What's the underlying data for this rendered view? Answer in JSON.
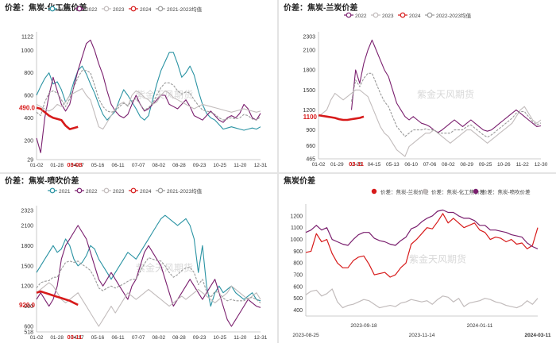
{
  "chart_data": [
    {
      "panel": "tl",
      "type": "line",
      "title": "价差：焦炭-化工焦价差",
      "legend": [
        "2021",
        "2022",
        "2023",
        "2024",
        "2021-2023均值"
      ],
      "legend_placement": "top",
      "xticks": [
        "01-02",
        "01-28",
        "04-17",
        "05-16",
        "06-11",
        "07-07",
        "08-02",
        "08-28",
        "09-23",
        "10-25",
        "11-20",
        "12-31"
      ],
      "yticks": [
        1122,
        1000,
        800,
        600,
        400,
        200,
        29
      ],
      "ylim": [
        29,
        1122
      ],
      "highlight": {
        "date": "03-08",
        "value": "490.0"
      },
      "watermark": "紫金天风期货",
      "series": [
        {
          "name": "2021",
          "color": "#2a93a3",
          "values": [
            600,
            680,
            750,
            800,
            700,
            720,
            650,
            540,
            600,
            720,
            820,
            860,
            790,
            700,
            620,
            520,
            430,
            380,
            420,
            460,
            560,
            650,
            600,
            540,
            480,
            410,
            380,
            420,
            560,
            700,
            820,
            900,
            980,
            980,
            880,
            760,
            800,
            860,
            780,
            640,
            520,
            440,
            400,
            380,
            340,
            300,
            310,
            320,
            310,
            300,
            290,
            300,
            310,
            300,
            320
          ]
        },
        {
          "name": "2022",
          "color": "#7a1f6e",
          "values": [
            220,
            90,
            400,
            600,
            760,
            640,
            520,
            460,
            520,
            680,
            820,
            940,
            1060,
            1090,
            1000,
            880,
            780,
            640,
            520,
            460,
            420,
            400,
            430,
            520,
            600,
            520,
            460,
            480,
            520,
            560,
            600,
            600,
            520,
            500,
            480,
            520,
            560,
            500,
            420,
            400,
            380,
            420,
            460,
            420,
            380,
            360,
            400,
            420,
            400,
            440,
            520,
            480,
            400,
            380,
            440
          ]
        },
        {
          "name": "2023",
          "color": "#c2bcbc",
          "values": [
            520,
            500,
            480,
            460,
            480,
            520,
            500,
            540,
            600,
            620,
            640,
            660,
            600,
            560,
            440,
            320,
            300,
            360,
            420,
            480,
            520,
            540,
            500,
            600,
            640,
            620,
            580,
            560,
            520,
            540,
            600,
            640,
            620,
            580,
            560,
            540,
            520,
            500,
            480,
            500,
            520,
            510,
            500,
            490,
            480,
            470,
            460,
            450,
            460,
            470,
            480,
            470,
            460,
            450,
            460
          ]
        },
        {
          "name": "2024",
          "color": "#d71a1a",
          "values": [
            490,
            480,
            450,
            420,
            400,
            390,
            380,
            330,
            300,
            310,
            320
          ]
        },
        {
          "name": "2021-2023均值",
          "color": "#9a9a9a",
          "values": [
            450,
            420,
            540,
            620,
            640,
            620,
            560,
            500,
            570,
            670,
            760,
            820,
            820,
            800,
            690,
            570,
            500,
            460,
            450,
            460,
            500,
            530,
            510,
            550,
            570,
            520,
            470,
            490,
            530,
            600,
            670,
            710,
            710,
            690,
            640,
            610,
            630,
            620,
            560,
            510,
            470,
            460,
            450,
            430,
            400,
            380,
            390,
            400,
            390,
            400,
            430,
            420,
            390,
            380,
            410
          ]
        }
      ]
    },
    {
      "panel": "tr",
      "type": "line",
      "title": "价差：焦炭-兰炭价差",
      "legend": [
        "2022",
        "2023",
        "2024",
        "2022-2023均值"
      ],
      "legend_placement": "top",
      "xticks": [
        "01-02",
        "01-29",
        "02-25",
        "04-15",
        "05-13",
        "06-10",
        "07-06",
        "08-02",
        "08-29",
        "09-25",
        "10-26",
        "11-22",
        "12-30"
      ],
      "yticks": [
        2303,
        2100,
        1800,
        1500,
        1200,
        900,
        660,
        465.0
      ],
      "ylim": [
        465,
        2303
      ],
      "highlight": {
        "date": "03-11",
        "value": "1100"
      },
      "watermark": "紫金天风期货",
      "series": [
        {
          "name": "2022",
          "color": "#7a1f6e",
          "values": [
            null,
            null,
            null,
            null,
            null,
            null,
            null,
            null,
            1200,
            1800,
            1600,
            1900,
            2100,
            2250,
            2100,
            1950,
            1800,
            1700,
            1500,
            1300,
            1200,
            1100,
            1050,
            1100,
            1050,
            1000,
            980,
            950,
            900,
            860,
            900,
            950,
            1000,
            1050,
            1000,
            950,
            1000,
            1050,
            1000,
            950,
            900,
            880,
            900,
            950,
            1000,
            1050,
            1100,
            1150,
            1200,
            1150,
            1100,
            1050,
            1000,
            950,
            960
          ]
        },
        {
          "name": "2023",
          "color": "#c2bcbc",
          "values": [
            1100,
            1150,
            1200,
            1350,
            1450,
            1400,
            1350,
            1400,
            1450,
            1500,
            1500,
            1450,
            1400,
            1250,
            1100,
            950,
            850,
            800,
            700,
            600,
            550,
            500,
            650,
            700,
            750,
            800,
            850,
            850,
            900,
            850,
            800,
            750,
            700,
            750,
            800,
            850,
            900,
            900,
            850,
            800,
            750,
            700,
            750,
            800,
            850,
            900,
            950,
            1000,
            1100,
            1200,
            1250,
            1150,
            1050,
            1000,
            1050
          ]
        },
        {
          "name": "2024",
          "color": "#d71a1a",
          "values": [
            1120,
            1110,
            1100,
            1090,
            1080,
            1060,
            1050,
            1050,
            1060,
            1070,
            1080,
            1100
          ]
        },
        {
          "name": "2022-2023均值",
          "color": "#9a9a9a",
          "values": [
            null,
            null,
            null,
            null,
            null,
            null,
            null,
            null,
            1325,
            1650,
            1550,
            1675,
            1750,
            1750,
            1600,
            1450,
            1325,
            1250,
            1100,
            950,
            875,
            800,
            850,
            900,
            900,
            900,
            915,
            900,
            900,
            855,
            850,
            850,
            850,
            900,
            900,
            900,
            950,
            975,
            925,
            875,
            825,
            790,
            825,
            875,
            925,
            975,
            1025,
            1075,
            1150,
            1175,
            1175,
            1100,
            1025,
            975,
            1005
          ]
        }
      ]
    },
    {
      "panel": "bl",
      "type": "line",
      "title": "价差：焦炭-喷吹价差",
      "legend": [
        "2021",
        "2022",
        "2023",
        "2024",
        "2021-2023均值"
      ],
      "legend_placement": "top",
      "xticks": [
        "01-02",
        "01-28",
        "04-17",
        "05-16",
        "06-11",
        "07-07",
        "08-02",
        "08-28",
        "09-23",
        "10-25",
        "11-20",
        "12-31"
      ],
      "yticks": [
        2323,
        2100,
        1800,
        1500,
        1200,
        900,
        600,
        518.0
      ],
      "ylim": [
        518,
        2323
      ],
      "highlight": {
        "date": "03-11",
        "value": "920.0"
      },
      "watermark": "紫金天风期货",
      "series": [
        {
          "name": "2021",
          "color": "#2a93a3",
          "values": [
            1400,
            1500,
            1600,
            1700,
            1800,
            1700,
            1750,
            1900,
            1800,
            1600,
            1500,
            1550,
            1650,
            1800,
            1750,
            1600,
            1500,
            1400,
            1300,
            1400,
            1500,
            1600,
            1700,
            1650,
            1600,
            1700,
            1800,
            1900,
            2000,
            2100,
            2200,
            2250,
            2200,
            2150,
            2100,
            2150,
            2200,
            2100,
            1900,
            1400,
            1800,
            1200,
            900,
            1100,
            1200,
            1100,
            1150,
            1200,
            1100,
            1050,
            1000,
            1050,
            1100,
            1000,
            980
          ]
        },
        {
          "name": "2022",
          "color": "#7a1f6e",
          "values": [
            1000,
            1100,
            1000,
            900,
            1000,
            1200,
            1600,
            1800,
            1900,
            2000,
            2100,
            2000,
            1900,
            1700,
            1500,
            1300,
            1200,
            1300,
            1400,
            1300,
            1200,
            1100,
            1000,
            1200,
            1300,
            1500,
            1700,
            1800,
            1700,
            1600,
            1500,
            1300,
            1100,
            900,
            1000,
            1100,
            1200,
            1300,
            1200,
            1100,
            1000,
            1100,
            1200,
            1300,
            1100,
            900,
            700,
            600,
            700,
            800,
            900,
            1000,
            950,
            900,
            880
          ]
        },
        {
          "name": "2023",
          "color": "#c2bcbc",
          "values": [
            1100,
            1150,
            1200,
            1250,
            1200,
            1100,
            1000,
            950,
            1000,
            1050,
            1100,
            1000,
            900,
            800,
            700,
            600,
            700,
            800,
            900,
            800,
            900,
            1000,
            1100,
            1050,
            1000,
            1050,
            1100,
            1150,
            1100,
            1050,
            1000,
            950,
            900,
            950,
            1000,
            1050,
            1000,
            1050,
            1100,
            1150,
            1100,
            1050,
            1000,
            950,
            1000,
            1050,
            1100,
            1200,
            1150,
            1100,
            1050,
            1000,
            1050,
            1100,
            1000
          ]
        },
        {
          "name": "2024",
          "color": "#d71a1a",
          "values": [
            1100,
            1120,
            1100,
            1080,
            1060,
            1040,
            1020,
            1000,
            980,
            950,
            920
          ]
        },
        {
          "name": "2021-2023均值",
          "color": "#9a9a9a",
          "values": [
            1170,
            1250,
            1270,
            1280,
            1330,
            1330,
            1450,
            1550,
            1570,
            1550,
            1570,
            1520,
            1480,
            1430,
            1320,
            1170,
            1130,
            1170,
            1200,
            1170,
            1200,
            1230,
            1270,
            1300,
            1300,
            1420,
            1530,
            1620,
            1600,
            1580,
            1570,
            1500,
            1400,
            1330,
            1370,
            1430,
            1470,
            1480,
            1400,
            1220,
            1300,
            1120,
            1030,
            1120,
            1100,
            1020,
            980,
            1000,
            980,
            980,
            980,
            1020,
            1030,
            1000,
            950
          ]
        }
      ]
    },
    {
      "panel": "br",
      "type": "line",
      "title": "焦炭价差",
      "legend": [
        "价差：焦炭-兰炭价差",
        "价差：焦炭-化工焦价差",
        "价差：焦炭-喷吹价差"
      ],
      "legend_placement": "top",
      "xticks": [
        "2023-08-25",
        "2023-09-18",
        "2023-11-14",
        "2024-01-11",
        "2024-03-11"
      ],
      "yticks": [
        1200,
        1100,
        1000,
        900,
        800,
        700,
        600,
        500,
        400
      ],
      "ylim": [
        350,
        1260
      ],
      "watermark": "紫金天风期货",
      "series": [
        {
          "name": "价差：焦炭-兰炭价差",
          "color": "#d71a1a",
          "values": [
            890,
            900,
            1050,
            980,
            1000,
            880,
            800,
            760,
            760,
            820,
            850,
            860,
            790,
            700,
            710,
            720,
            680,
            700,
            760,
            800,
            960,
            1000,
            1050,
            1100,
            1090,
            1150,
            1220,
            1140,
            1180,
            1140,
            1100,
            1120,
            1140,
            1080,
            1060,
            1000,
            1020,
            1010,
            980,
            1000,
            960,
            970,
            920,
            950,
            1100
          ]
        },
        {
          "name": "价差：焦炭-化工焦价差",
          "color": "#c2bcbc",
          "values": [
            530,
            560,
            570,
            520,
            540,
            580,
            470,
            420,
            440,
            450,
            470,
            490,
            480,
            450,
            420,
            430,
            440,
            430,
            460,
            470,
            490,
            480,
            470,
            480,
            450,
            490,
            520,
            510,
            470,
            500,
            430,
            460,
            470,
            480,
            500,
            490,
            470,
            460,
            440,
            430,
            420,
            440,
            480,
            450,
            500
          ]
        },
        {
          "name": "价差：焦炭-喷吹价差",
          "color": "#7a1f6e",
          "values": [
            1060,
            1080,
            1120,
            1080,
            1100,
            1000,
            980,
            960,
            950,
            1000,
            1040,
            1060,
            1060,
            1010,
            990,
            980,
            960,
            950,
            990,
            1020,
            1090,
            1110,
            1150,
            1180,
            1200,
            1240,
            1250,
            1230,
            1230,
            1200,
            1180,
            1180,
            1160,
            1120,
            1120,
            1080,
            1080,
            1070,
            1060,
            1040,
            1030,
            1020,
            970,
            940,
            920
          ]
        }
      ]
    }
  ]
}
